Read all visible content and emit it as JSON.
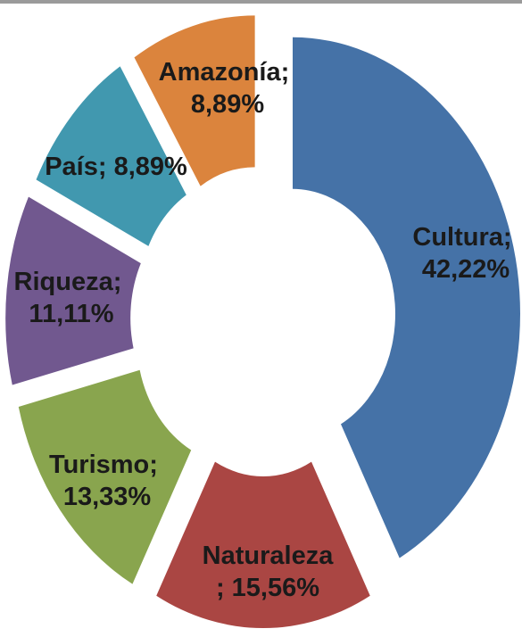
{
  "chart_data": {
    "type": "donut",
    "categories": [
      "Cultura",
      "Naturaleza",
      "Turismo",
      "Riqueza",
      "País",
      "Amazonía"
    ],
    "values": [
      42.22,
      15.56,
      13.33,
      11.11,
      8.89,
      8.89
    ],
    "value_labels": [
      "42,22%",
      "15,56%",
      "13,33%",
      "11,11%",
      "8,89%",
      "8,89%"
    ],
    "label_separator": "; ",
    "colors": [
      "#4572a7",
      "#aa4643",
      "#89a54e",
      "#71588f",
      "#4198af",
      "#db843d"
    ]
  }
}
